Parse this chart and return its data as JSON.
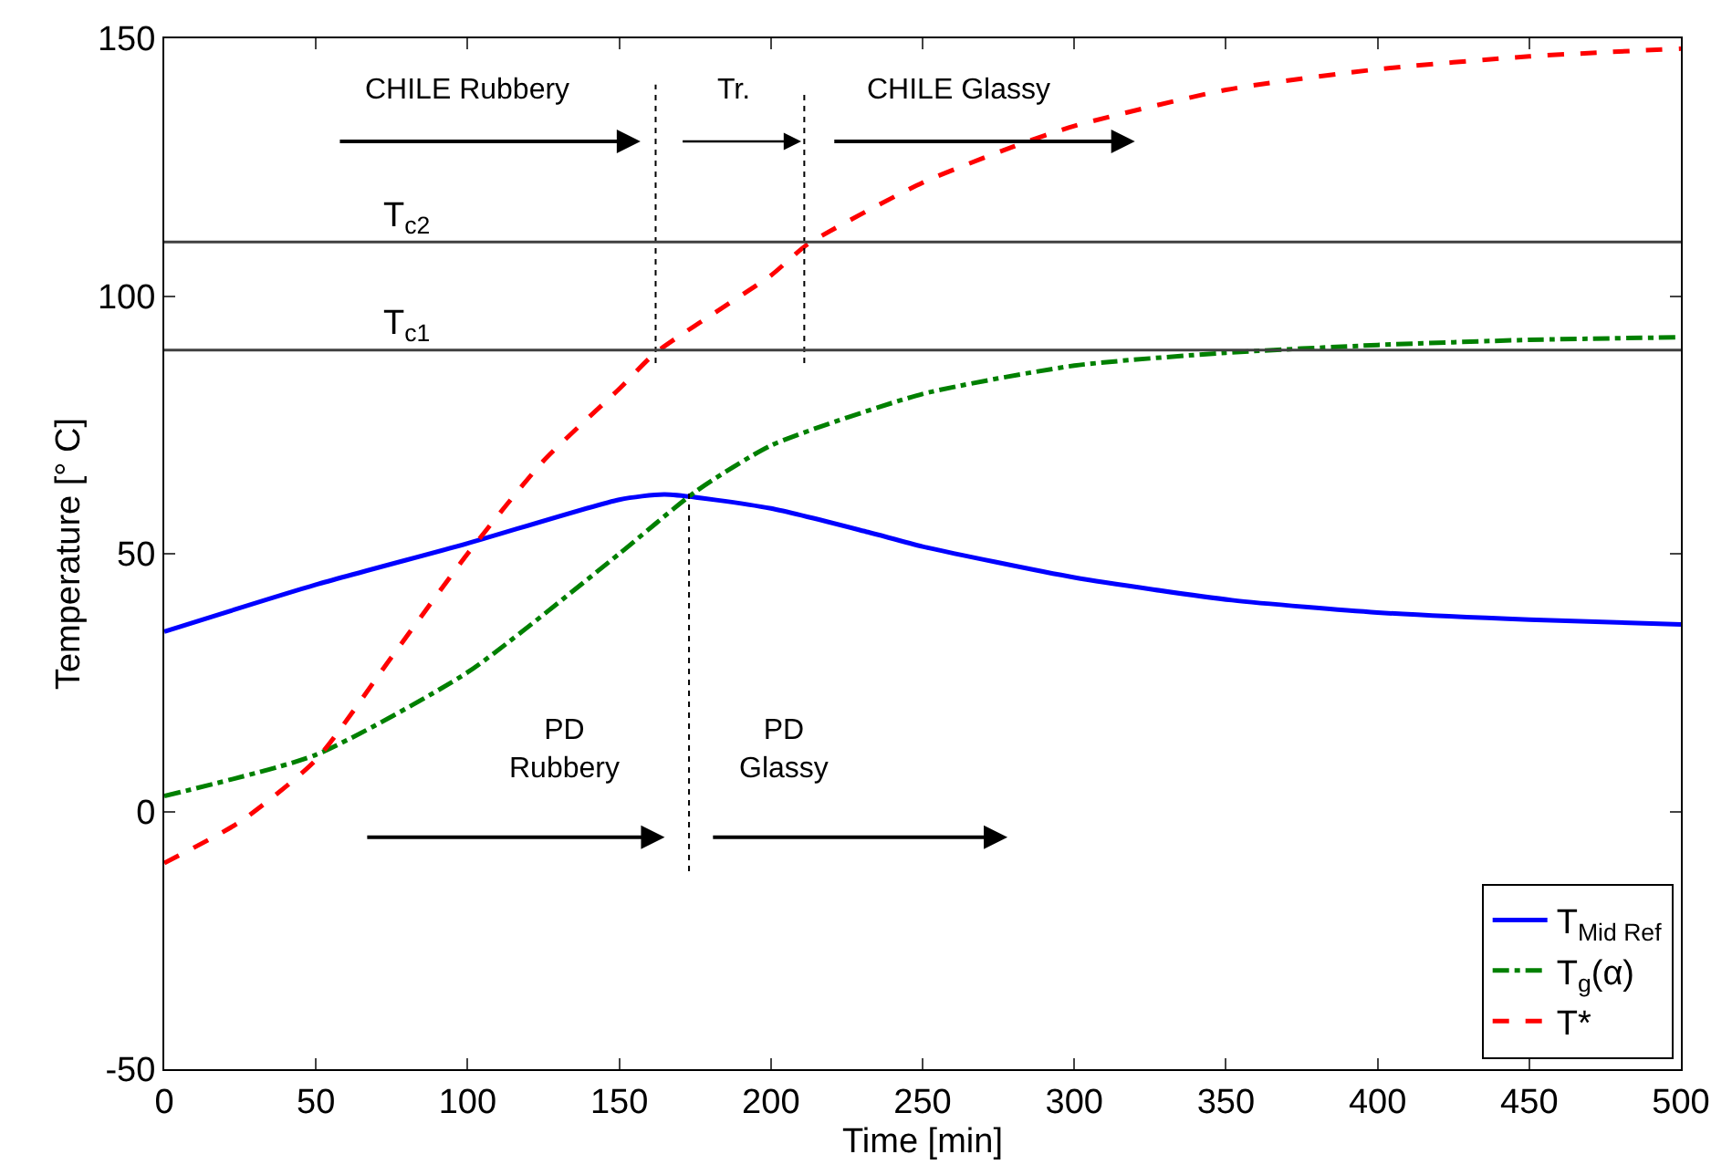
{
  "chart_data": {
    "type": "line",
    "xlabel": "Time [min]",
    "ylabel": "Temperature [° C]",
    "xlim": [
      0,
      500
    ],
    "xticks": [
      0,
      50,
      100,
      150,
      200,
      250,
      300,
      350,
      400,
      450,
      500
    ],
    "ylim": [
      -50,
      150
    ],
    "yticks": [
      -50,
      0,
      50,
      100,
      150
    ],
    "grid": false,
    "legend": "bottom right",
    "marker": "none",
    "series": [
      {
        "name": "T$_{Mid Ref}$",
        "color": "#0000ff",
        "line_style": "solid",
        "x": [
          0,
          50,
          100,
          150,
          165,
          200,
          232,
          250,
          300,
          352,
          400,
          450,
          500
        ],
        "values": [
          34.9,
          44,
          52,
          60.5,
          61.5,
          58.8,
          54.2,
          51.4,
          45.4,
          41,
          38.6,
          37.2,
          36.3
        ]
      },
      {
        "name": "T$_{g}$(α)",
        "color": "#008000",
        "line_style": "dashdot",
        "x": [
          0,
          50,
          100,
          150,
          175,
          200,
          250,
          300,
          350,
          400,
          450,
          500
        ],
        "values": [
          3,
          11,
          27,
          50,
          62,
          71,
          81,
          86.5,
          89,
          90.5,
          91.5,
          92
        ]
      },
      {
        "name": "T*",
        "color": "#ff0000",
        "line_style": "dashed",
        "x": [
          0,
          25,
          50,
          75,
          100,
          125,
          150,
          162,
          200,
          212,
          250,
          280,
          300,
          350,
          400,
          450,
          500
        ],
        "values": [
          -10,
          -2,
          10,
          30,
          50,
          68,
          82,
          89,
          104,
          110,
          122,
          129,
          133,
          140,
          144,
          146.5,
          148
        ]
      },
      {
        "type": "line",
        "color": "#000000",
        "line_style": "dotted",
        "x": [
          162,
          162
        ],
        "values": [
          87,
          141
        ]
      },
      {
        "type": "line",
        "color": "#000000",
        "line_style": "dotted",
        "x": [
          211,
          211
        ],
        "values": [
          87,
          139.5
        ]
      },
      {
        "type": "line",
        "color": "#000000",
        "line_style": "dotted",
        "x": [
          173,
          173
        ],
        "values": [
          -11.6,
          62
        ]
      }
    ],
    "ref_lines": [
      {
        "axis": "y",
        "value": 110.5,
        "label": "T$_{c2}$",
        "color": "#404040",
        "line_style": "solid"
      },
      {
        "axis": "y",
        "value": 89.5,
        "label": "T$_{c1}$",
        "color": "#404040",
        "line_style": "solid"
      }
    ],
    "annotations": [
      "CHILE Rubbery",
      "Tr.",
      "CHILE Glassy",
      "PD\nRubbery",
      "PD\nGlassy"
    ]
  }
}
